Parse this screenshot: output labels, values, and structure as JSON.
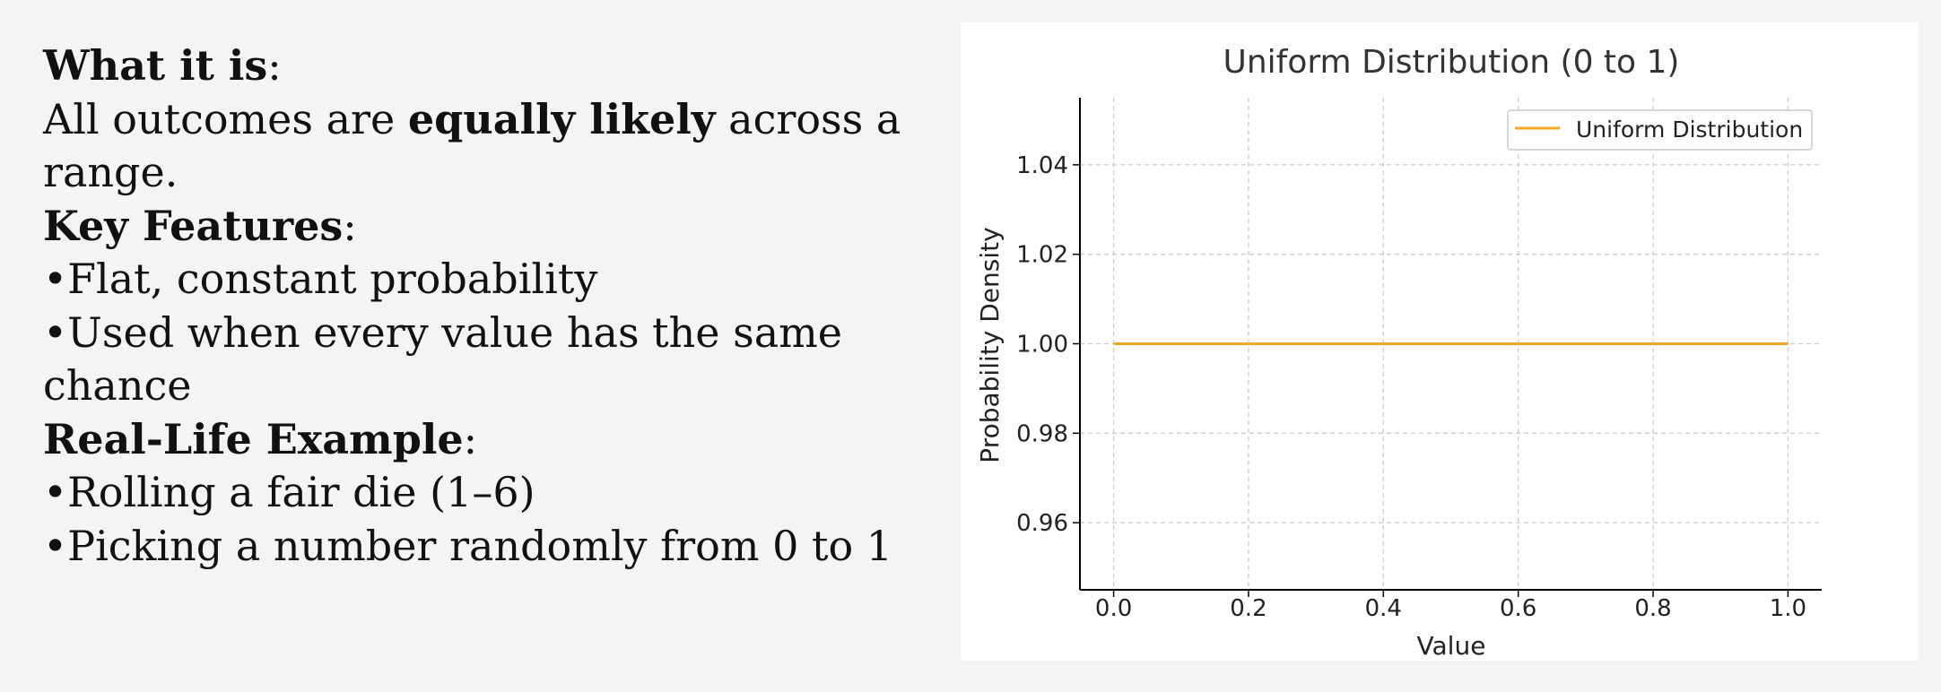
{
  "text": {
    "what_it_is_label": "What it is",
    "what_it_is_colon": ":",
    "desc_part1": "All outcomes are ",
    "desc_bold": "equally likely",
    "desc_part2": " across a range.",
    "key_features_label": "Key Features",
    "key_features_colon": ":",
    "feature_1": "•Flat, constant probability",
    "feature_2": "•Used when every value has the same chance",
    "example_label": "Real-Life Example",
    "example_colon": ":",
    "example_1": "•Rolling a fair die (1–6)",
    "example_2": "•Picking a number randomly from 0 to 1"
  },
  "colors": {
    "line": "#f5a623",
    "axis": "#000000",
    "grid": "#cccccc",
    "background": "#f4f4f4"
  },
  "chart_data": {
    "type": "line",
    "title": "Uniform Distribution (0 to 1)",
    "xlabel": "Value",
    "ylabel": "Probability Density",
    "xlim": [
      -0.05,
      1.05
    ],
    "ylim": [
      0.945,
      1.055
    ],
    "xticks": [
      0.0,
      0.2,
      0.4,
      0.6,
      0.8,
      1.0
    ],
    "xtick_labels": [
      "0.0",
      "0.2",
      "0.4",
      "0.6",
      "0.8",
      "1.0"
    ],
    "yticks": [
      0.96,
      0.98,
      1.0,
      1.02,
      1.04
    ],
    "ytick_labels": [
      "0.96",
      "0.98",
      "1.00",
      "1.02",
      "1.04"
    ],
    "grid": true,
    "legend_position": "top-right",
    "series": [
      {
        "name": "Uniform Distribution",
        "x": [
          0.0,
          1.0
        ],
        "y": [
          1.0,
          1.0
        ]
      }
    ]
  }
}
